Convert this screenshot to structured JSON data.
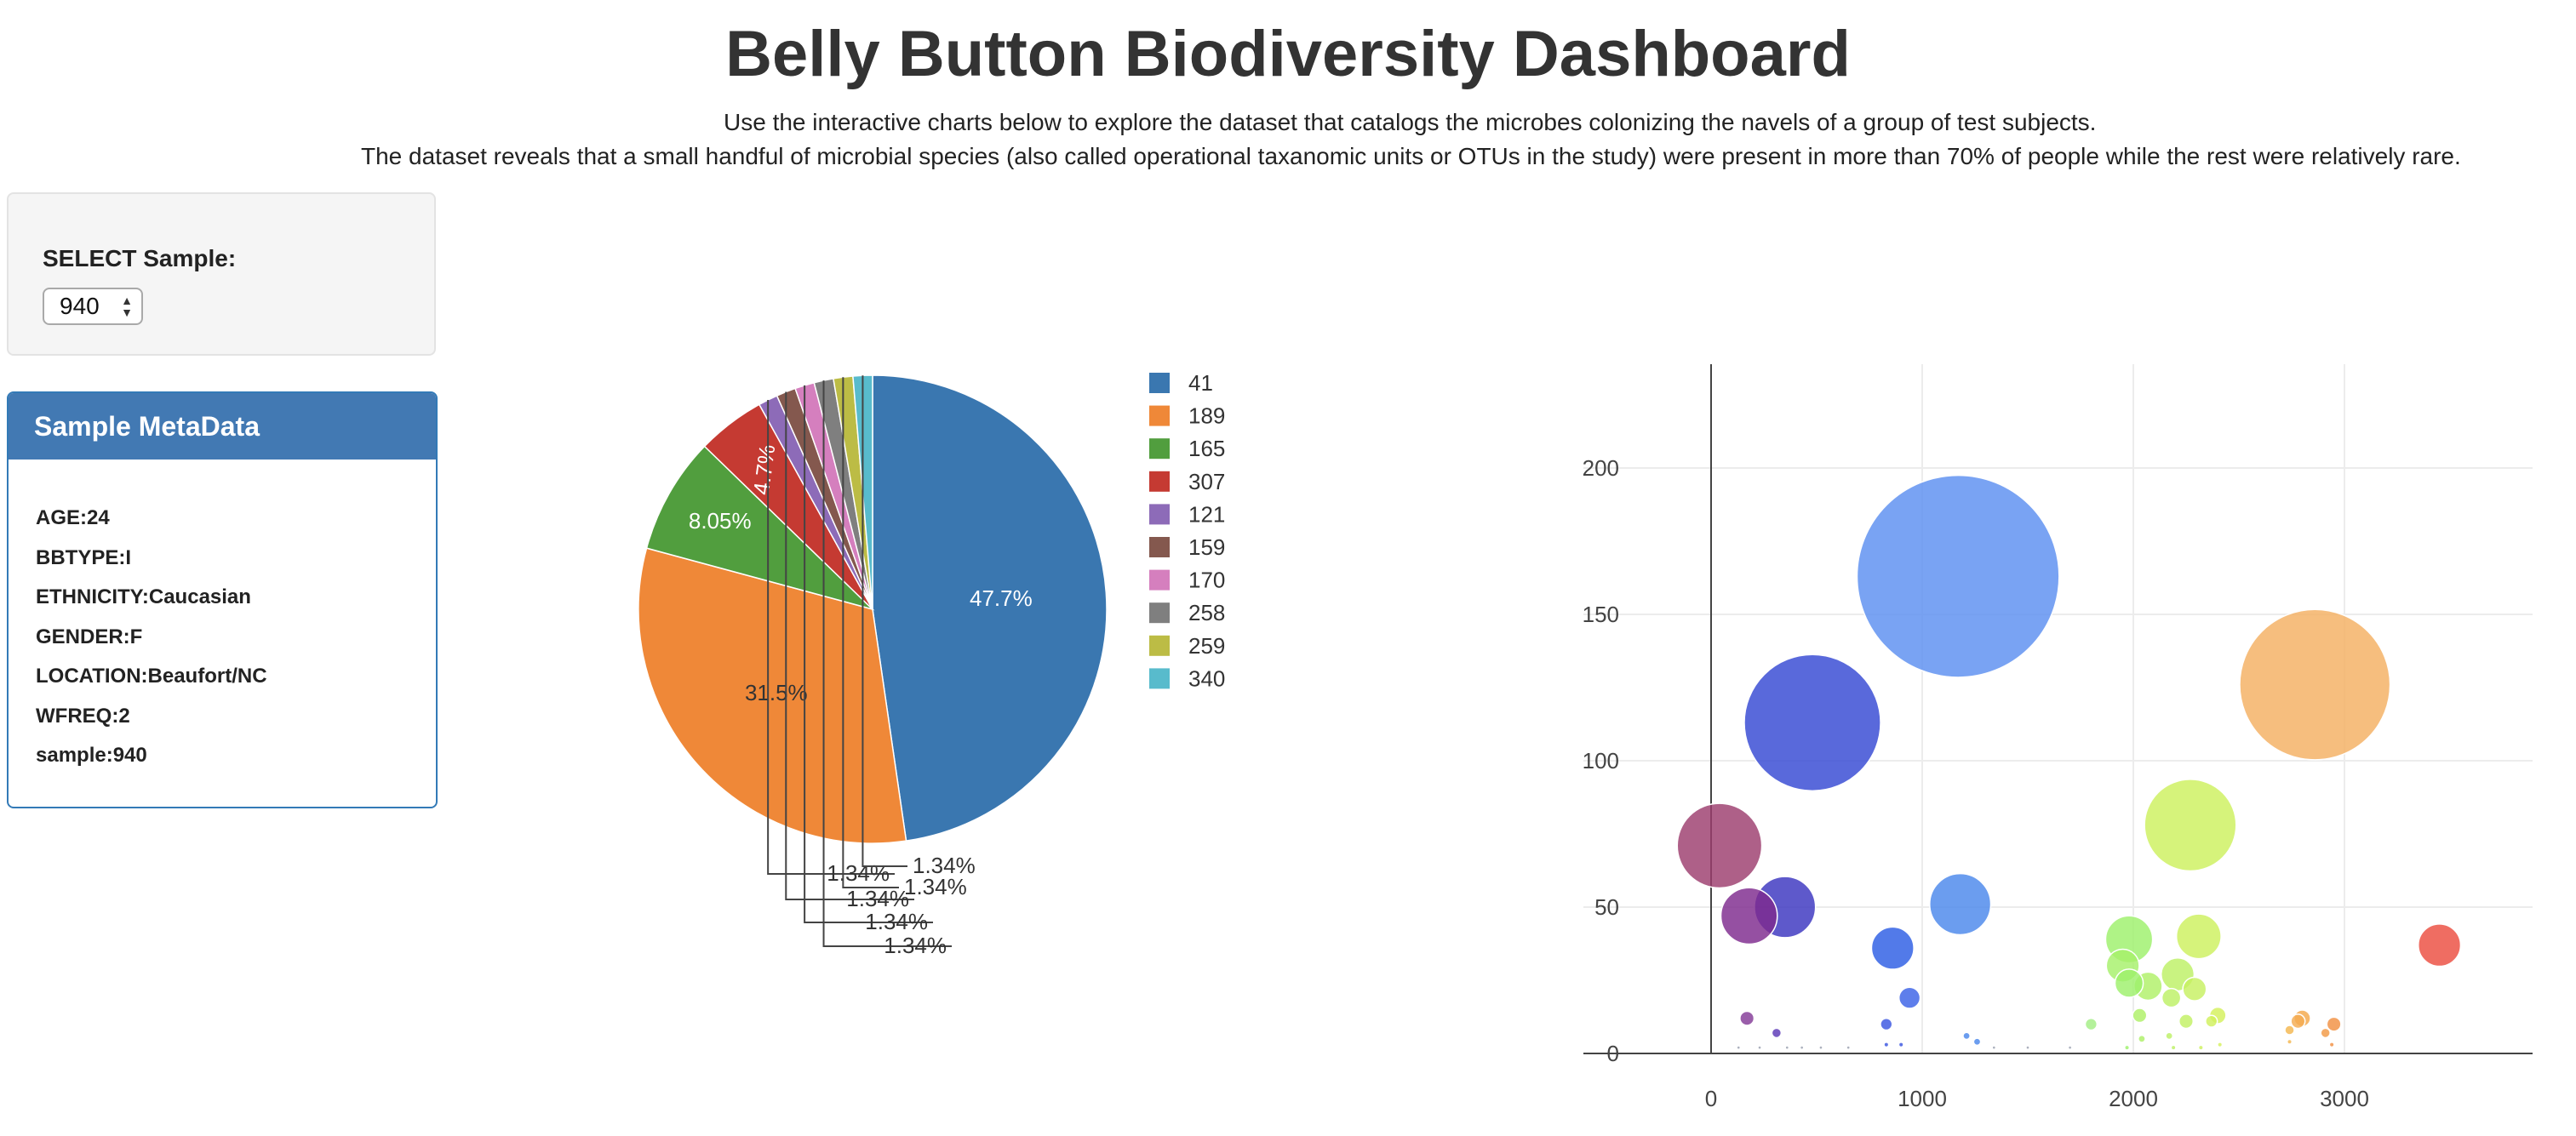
{
  "page": {
    "title": "Belly Button Biodiversity Dashboard",
    "description_line1": "Use the interactive charts below to explore the dataset that catalogs the microbes colonizing the navels of a group of test subjects.",
    "description_line2": "The dataset reveals that a small handful of microbial species (also called operational taxanomic units or OTUs in the study) were present in more than 70% of people while the rest were relatively rare."
  },
  "selector": {
    "label": "SELECT Sample:",
    "value": "940"
  },
  "metadata": {
    "heading": "Sample MetaData",
    "items": [
      "AGE:24",
      "BBTYPE:I",
      "ETHNICITY:Caucasian",
      "GENDER:F",
      "LOCATION:Beaufort/NC",
      "WFREQ:2",
      "sample:940"
    ]
  },
  "chart_data": [
    {
      "type": "pie",
      "labels": [
        "41",
        "189",
        "165",
        "307",
        "121",
        "159",
        "170",
        "258",
        "259",
        "340"
      ],
      "values": [
        47.7,
        31.5,
        8.05,
        4.7,
        1.34,
        1.34,
        1.34,
        1.34,
        1.34,
        1.34
      ],
      "slice_labels": [
        "47.7%",
        "31.5%",
        "8.05%",
        "4.7%",
        "1.34%",
        "1.34%",
        "1.34%",
        "1.34%",
        "1.34%",
        "1.34%"
      ],
      "colors": [
        "#3a77b0",
        "#ef8838",
        "#519e3e",
        "#c53a32",
        "#8d6bb8",
        "#84584e",
        "#d57fbe",
        "#7f7f7f",
        "#bcbc45",
        "#58bbcc"
      ],
      "legend": "right"
    },
    {
      "type": "scatter",
      "subtype": "bubble",
      "xticks": [
        "0",
        "1000",
        "2000",
        "3000"
      ],
      "yticks": [
        "0",
        "50",
        "100",
        "150",
        "200"
      ],
      "xlim": [
        -550,
        3850
      ],
      "ylim": [
        -1,
        235
      ],
      "grid": true,
      "points": [
        {
          "x": 1170,
          "y": 163,
          "r": 86,
          "color": "#5b8ff0"
        },
        {
          "x": 2860,
          "y": 126,
          "r": 64,
          "color": "#f4b061"
        },
        {
          "x": 480,
          "y": 113,
          "r": 58,
          "color": "#3548d3"
        },
        {
          "x": 2270,
          "y": 78,
          "r": 39,
          "color": "#cdf05e"
        },
        {
          "x": 40,
          "y": 71,
          "r": 36,
          "color": "#9c3d6e"
        },
        {
          "x": 1180,
          "y": 51,
          "r": 26,
          "color": "#4a87ec"
        },
        {
          "x": 350,
          "y": 50,
          "r": 26,
          "color": "#3a35c0"
        },
        {
          "x": 180,
          "y": 47,
          "r": 24,
          "color": "#7e2a8e"
        },
        {
          "x": 1980,
          "y": 39,
          "r": 20,
          "color": "#9ef06b"
        },
        {
          "x": 2310,
          "y": 40,
          "r": 19,
          "color": "#cdf05e"
        },
        {
          "x": 3450,
          "y": 37,
          "r": 18,
          "color": "#ec4d3f"
        },
        {
          "x": 860,
          "y": 36,
          "r": 18,
          "color": "#2c5de4"
        },
        {
          "x": 1950,
          "y": 30,
          "r": 14,
          "color": "#a6f06a"
        },
        {
          "x": 2210,
          "y": 27,
          "r": 14,
          "color": "#bdf065"
        },
        {
          "x": 2070,
          "y": 23,
          "r": 12,
          "color": "#b0f068"
        },
        {
          "x": 1980,
          "y": 24,
          "r": 12,
          "color": "#9ef06b"
        },
        {
          "x": 2290,
          "y": 22,
          "r": 10,
          "color": "#c7f062"
        },
        {
          "x": 2180,
          "y": 19,
          "r": 8,
          "color": "#bdf065"
        },
        {
          "x": 940,
          "y": 19,
          "r": 9,
          "color": "#3a62e6"
        },
        {
          "x": 2030,
          "y": 13,
          "r": 6,
          "color": "#aef067"
        },
        {
          "x": 2400,
          "y": 13,
          "r": 7,
          "color": "#d4f05c"
        },
        {
          "x": 2250,
          "y": 11,
          "r": 6,
          "color": "#c2f063"
        },
        {
          "x": 2370,
          "y": 11,
          "r": 5,
          "color": "#d1f05d"
        },
        {
          "x": 2800,
          "y": 12,
          "r": 7,
          "color": "#f4a84a"
        },
        {
          "x": 2780,
          "y": 11,
          "r": 6,
          "color": "#f4ac52"
        },
        {
          "x": 2950,
          "y": 10,
          "r": 6,
          "color": "#f19042"
        },
        {
          "x": 170,
          "y": 12,
          "r": 6,
          "color": "#843a97"
        },
        {
          "x": 830,
          "y": 10,
          "r": 5,
          "color": "#3a55e0"
        },
        {
          "x": 1800,
          "y": 10,
          "r": 5,
          "color": "#a3ee85"
        },
        {
          "x": 2740,
          "y": 8,
          "r": 4,
          "color": "#f4b74f"
        },
        {
          "x": 2910,
          "y": 7,
          "r": 4,
          "color": "#f19a46"
        },
        {
          "x": 310,
          "y": 7,
          "r": 4,
          "color": "#5b38b7"
        },
        {
          "x": 1210,
          "y": 6,
          "r": 3,
          "color": "#4a87ec"
        },
        {
          "x": 1260,
          "y": 4,
          "r": 3,
          "color": "#4a87ec"
        },
        {
          "x": 2170,
          "y": 6,
          "r": 3,
          "color": "#bdf065"
        },
        {
          "x": 2040,
          "y": 5,
          "r": 3,
          "color": "#adf068"
        },
        {
          "x": 2740,
          "y": 4,
          "r": 2,
          "color": "#f4b74f"
        },
        {
          "x": 2940,
          "y": 3,
          "r": 2,
          "color": "#f19042"
        },
        {
          "x": 2410,
          "y": 3,
          "r": 2,
          "color": "#d4f05c"
        },
        {
          "x": 900,
          "y": 3,
          "r": 2,
          "color": "#3a55e0"
        },
        {
          "x": 830,
          "y": 3,
          "r": 2,
          "color": "#3a55e0"
        },
        {
          "x": 2190,
          "y": 2,
          "r": 2,
          "color": "#bdf065"
        },
        {
          "x": 2320,
          "y": 2,
          "r": 2,
          "color": "#cdf05e"
        },
        {
          "x": 1970,
          "y": 2,
          "r": 2,
          "color": "#9ef06b"
        },
        {
          "x": 130,
          "y": 2,
          "r": 1.5,
          "color": "#9aa0b0"
        },
        {
          "x": 230,
          "y": 2,
          "r": 1.5,
          "color": "#9aa0b0"
        },
        {
          "x": 360,
          "y": 2,
          "r": 1.5,
          "color": "#9aa0b0"
        },
        {
          "x": 430,
          "y": 2,
          "r": 1.5,
          "color": "#9aa0b0"
        },
        {
          "x": 520,
          "y": 2,
          "r": 1.5,
          "color": "#9aa0b0"
        },
        {
          "x": 650,
          "y": 2,
          "r": 1.5,
          "color": "#9aa0b0"
        },
        {
          "x": 1340,
          "y": 2,
          "r": 1.5,
          "color": "#9aa0b0"
        },
        {
          "x": 1500,
          "y": 2,
          "r": 1.5,
          "color": "#9aa0b0"
        },
        {
          "x": 1700,
          "y": 2,
          "r": 1.5,
          "color": "#9aa0b0"
        }
      ]
    }
  ]
}
